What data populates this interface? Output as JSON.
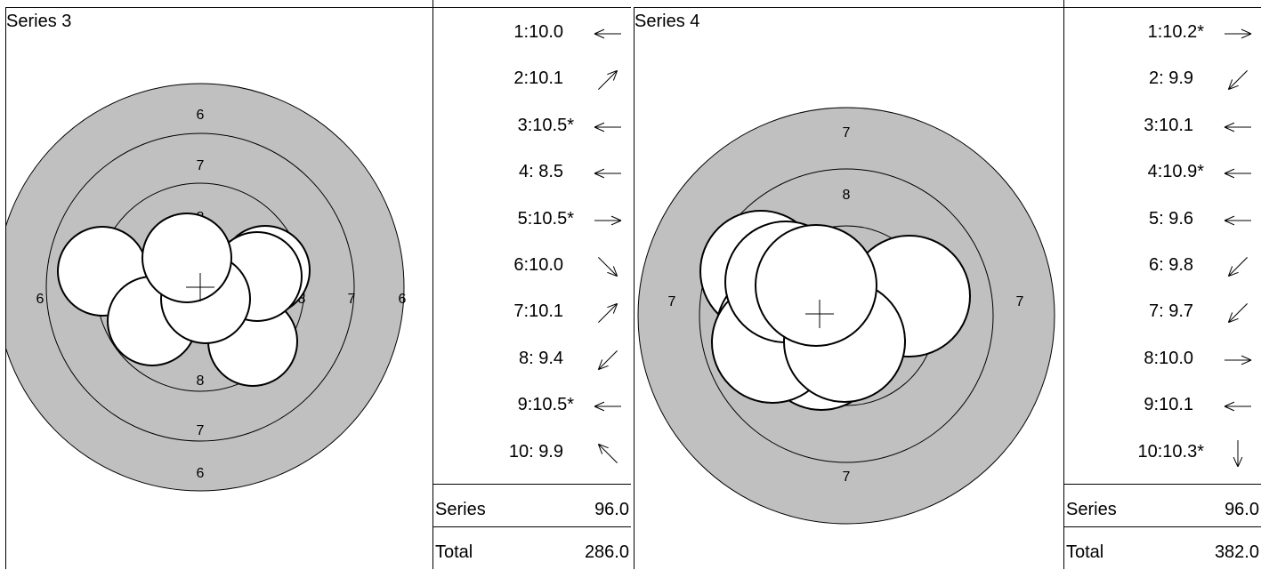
{
  "panels": [
    {
      "title": "Series 3",
      "rings": [
        {
          "value": 6,
          "fill": "#c0c0c0"
        },
        {
          "value": 7,
          "fill": "#c0c0c0"
        },
        {
          "value": 8,
          "fill": "#c0c0c0"
        },
        {
          "value": 9,
          "fill": "#c0c0c0"
        },
        {
          "value": 10,
          "fill": "#c0c0c0"
        }
      ],
      "ring_labels": {
        "6": "6",
        "7": "7",
        "8": "8"
      },
      "shots": [
        {
          "n": "1:",
          "score": "10.0",
          "dir": "←"
        },
        {
          "n": "2:",
          "score": "10.1",
          "dir": "↗"
        },
        {
          "n": "3:",
          "score": "10.5*",
          "dir": "←"
        },
        {
          "n": "4:",
          "score": " 8.5",
          "dir": "←"
        },
        {
          "n": "5:",
          "score": "10.5*",
          "dir": "→"
        },
        {
          "n": "6:",
          "score": "10.0",
          "dir": "↘"
        },
        {
          "n": "7:",
          "score": "10.1",
          "dir": "↗"
        },
        {
          "n": "8:",
          "score": " 9.4",
          "dir": "↙"
        },
        {
          "n": "9:",
          "score": "10.5*",
          "dir": "←"
        },
        {
          "n": "10:",
          "score": " 9.9",
          "dir": "↖"
        }
      ],
      "series_label": "Series",
      "series_value": "96.0",
      "total_label": "Total",
      "total_value": "286.0"
    },
    {
      "title": "Series 4",
      "rings": [
        {
          "value": 7,
          "fill": "#c0c0c0"
        },
        {
          "value": 8,
          "fill": "#c0c0c0"
        },
        {
          "value": 9,
          "fill": "#c0c0c0"
        },
        {
          "value": 10,
          "fill": "#c0c0c0"
        }
      ],
      "ring_labels": {
        "7": "7",
        "8": "8"
      },
      "shots": [
        {
          "n": "1:",
          "score": "10.2*",
          "dir": "→"
        },
        {
          "n": "2:",
          "score": " 9.9",
          "dir": "↙"
        },
        {
          "n": "3:",
          "score": "10.1",
          "dir": "←"
        },
        {
          "n": "4:",
          "score": "10.9*",
          "dir": "←"
        },
        {
          "n": "5:",
          "score": " 9.6",
          "dir": "←"
        },
        {
          "n": "6:",
          "score": " 9.8",
          "dir": "↙"
        },
        {
          "n": "7:",
          "score": " 9.7",
          "dir": "↙"
        },
        {
          "n": "8:",
          "score": "10.0",
          "dir": "→"
        },
        {
          "n": "9:",
          "score": "10.1",
          "dir": "←"
        },
        {
          "n": "10:",
          "score": "10.3*",
          "dir": "↓"
        }
      ],
      "series_label": "Series",
      "series_value": "96.0",
      "total_label": "Total",
      "total_value": "382.0"
    }
  ]
}
